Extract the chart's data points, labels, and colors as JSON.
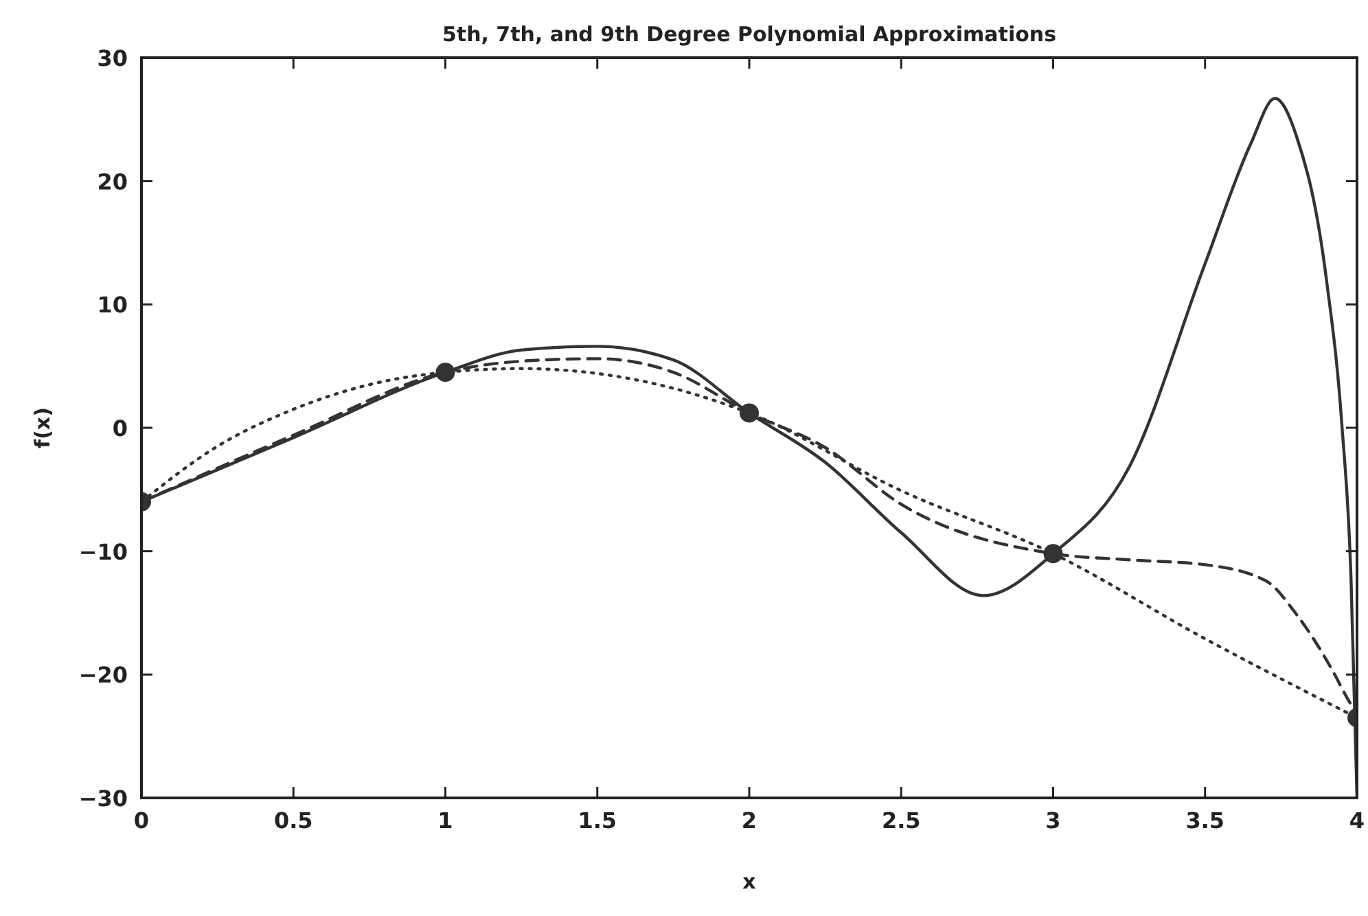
{
  "chart_data": {
    "type": "line",
    "title": "5th, 7th, and 9th Degree Polynomial Approximations",
    "xlabel": "x",
    "ylabel": "f(x)",
    "xlim": [
      0,
      4
    ],
    "ylim": [
      -30,
      30
    ],
    "xticks": [
      0,
      0.5,
      1,
      1.5,
      2,
      2.5,
      3,
      3.5,
      4
    ],
    "yticks": [
      -30,
      -20,
      -10,
      0,
      10,
      20,
      30
    ],
    "grid": false,
    "series": [
      {
        "color": "#333333",
        "line_style": "solid",
        "marker": "none",
        "x": [
          0,
          0.5,
          1,
          1.25,
          1.5,
          1.75,
          2,
          2.25,
          2.5,
          2.77,
          3,
          3.25,
          3.5,
          3.65,
          3.73,
          3.8,
          3.9,
          3.95,
          3.98,
          4
        ],
        "values": [
          -6,
          -0.8,
          4.5,
          6.3,
          6.6,
          5.5,
          1.2,
          -2.8,
          -8.5,
          -13.6,
          -10.2,
          -3.2,
          13.3,
          23,
          26.7,
          23.7,
          11.9,
          0.3,
          -12,
          -30
        ]
      },
      {
        "color": "#333333",
        "line_style": "dashed",
        "marker": "none",
        "x": [
          0,
          0.5,
          1,
          1.25,
          1.5,
          1.75,
          2,
          2.25,
          2.5,
          3,
          3.25,
          3.5,
          3.7,
          3.8,
          3.92,
          3.97,
          3.99
        ],
        "values": [
          -6,
          -0.6,
          4.5,
          5.4,
          5.6,
          4.5,
          1.2,
          -1.6,
          -6.2,
          -10.2,
          -10.7,
          -11.1,
          -12.4,
          -15.1,
          -19.7,
          -22,
          -22.8
        ]
      },
      {
        "color": "#333333",
        "line_style": "dotted",
        "marker": "none",
        "x": [
          0,
          0.25,
          0.5,
          0.75,
          1,
          1.25,
          1.5,
          1.75,
          2,
          2.5,
          3,
          3.5,
          4
        ],
        "values": [
          -6,
          -1.5,
          1.5,
          3.5,
          4.5,
          4.8,
          4.4,
          3.2,
          1.2,
          -5.1,
          -10.2,
          -17.1,
          -23.5
        ]
      },
      {
        "type": "scatter",
        "color": "#333333",
        "marker": "circle",
        "x": [
          0,
          1,
          2,
          3,
          4
        ],
        "values": [
          -6,
          4.5,
          1.2,
          -10.2,
          -23.5
        ]
      }
    ]
  }
}
